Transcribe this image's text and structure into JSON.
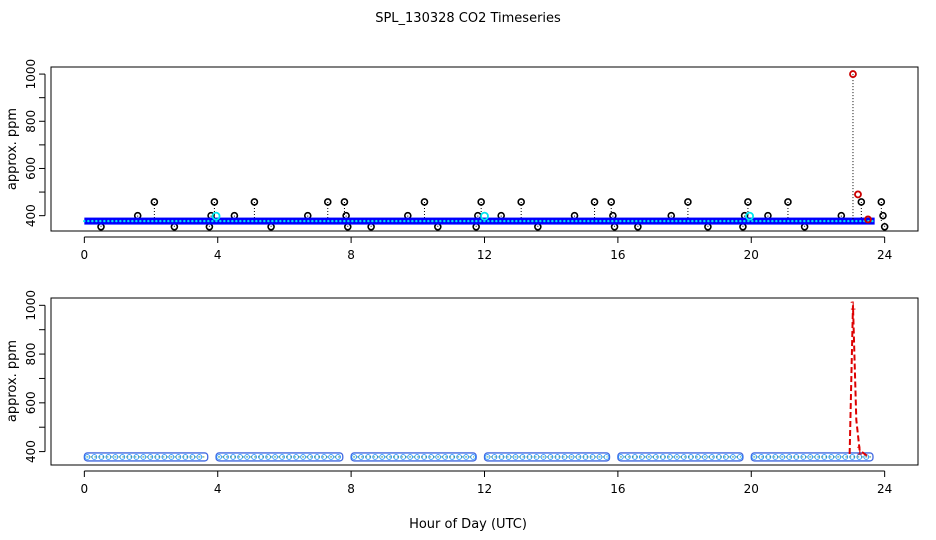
{
  "chart_data": {
    "type": "scatter",
    "title": "SPL_130328  CO2 Timeseries",
    "xlabel": "Hour of Day (UTC)",
    "x_ticks": [
      "0",
      "4",
      "8",
      "12",
      "16",
      "20",
      "24"
    ],
    "y_ticks": [
      "400",
      "600",
      "800",
      "1000"
    ],
    "xlim": [
      -1,
      25
    ],
    "panels": [
      {
        "id": "top",
        "ylabel": "approx. ppm",
        "ylim": [
          335,
          1030
        ],
        "baseline": 377,
        "baseline_span": [
          0,
          23.7
        ],
        "scatter_high": {
          "value": 458,
          "hours": [
            2.1,
            3.9,
            5.1,
            7.3,
            7.8,
            10.2,
            11.9,
            13.1,
            15.3,
            15.8,
            18.1,
            19.9,
            21.1,
            23.3,
            23.9
          ]
        },
        "scatter_mid": {
          "value": 400,
          "hours": [
            1.6,
            3.8,
            4.5,
            6.7,
            7.85,
            9.7,
            11.8,
            12.5,
            14.7,
            15.85,
            17.6,
            19.8,
            20.5,
            22.7,
            23.95
          ]
        },
        "scatter_low": {
          "value": 353,
          "hours": [
            0.5,
            2.7,
            3.75,
            5.6,
            7.9,
            8.6,
            10.6,
            11.75,
            13.6,
            15.9,
            16.6,
            18.7,
            19.75,
            21.6,
            24.0
          ]
        },
        "cyan_points": [
          {
            "x": 3.95,
            "y": 398
          },
          {
            "x": 12.0,
            "y": 398
          },
          {
            "x": 19.95,
            "y": 398
          }
        ],
        "red_points": [
          {
            "x": 23.05,
            "y": 1000
          },
          {
            "x": 23.2,
            "y": 490
          },
          {
            "x": 23.5,
            "y": 384
          }
        ],
        "spike": {
          "x": 23.05,
          "top": 1000
        }
      },
      {
        "id": "bottom",
        "ylabel": "approx. ppm",
        "ylim": [
          345,
          1030
        ],
        "base": 378,
        "segments": [
          [
            0,
            3.7
          ],
          [
            3.95,
            7.75
          ],
          [
            8.0,
            11.75
          ],
          [
            12.0,
            15.75
          ],
          [
            16.0,
            19.75
          ],
          [
            20.0,
            23.65
          ]
        ],
        "spike_series": [
          {
            "x": 22.95,
            "y": 390
          },
          {
            "x": 23.05,
            "y": 1000
          },
          {
            "x": 23.15,
            "y": 530
          },
          {
            "x": 23.25,
            "y": 405
          },
          {
            "x": 23.5,
            "y": 380
          }
        ],
        "spike_labels": [
          {
            "text": "1",
            "x": 23.05,
            "y": 1000
          },
          {
            "text": "1",
            "x": 23.25,
            "y": 405
          }
        ]
      }
    ]
  }
}
